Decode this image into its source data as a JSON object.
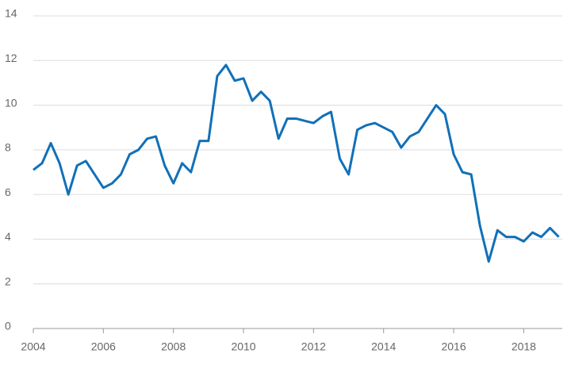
{
  "chart_data": {
    "type": "line",
    "x": [
      2004,
      2004.25,
      2004.5,
      2004.75,
      2005,
      2005.25,
      2005.5,
      2005.75,
      2006,
      2006.25,
      2006.5,
      2006.75,
      2007,
      2007.25,
      2007.5,
      2007.75,
      2008,
      2008.25,
      2008.5,
      2008.75,
      2009,
      2009.25,
      2009.5,
      2009.75,
      2010,
      2010.25,
      2010.5,
      2010.75,
      2011,
      2011.25,
      2011.5,
      2011.75,
      2012,
      2012.25,
      2012.5,
      2012.75,
      2013,
      2013.25,
      2013.5,
      2013.75,
      2014,
      2014.25,
      2014.5,
      2014.75,
      2015,
      2015.25,
      2015.5,
      2015.75,
      2016,
      2016.25,
      2016.5,
      2016.75,
      2017,
      2017.25,
      2017.5,
      2017.75,
      2018,
      2018.25,
      2018.5,
      2018.75,
      2019
    ],
    "series": [
      {
        "color": "#1170b8",
        "values": [
          7.1,
          7.4,
          8.3,
          7.4,
          6.0,
          7.3,
          7.5,
          6.9,
          6.3,
          6.5,
          6.9,
          7.8,
          8.0,
          8.5,
          8.6,
          7.3,
          6.5,
          7.4,
          7.0,
          8.4,
          8.4,
          11.3,
          11.8,
          11.1,
          11.2,
          10.2,
          10.6,
          10.2,
          8.5,
          9.4,
          9.4,
          9.3,
          9.2,
          9.5,
          9.7,
          7.6,
          6.9,
          8.9,
          9.1,
          9.2,
          9.0,
          8.8,
          8.1,
          8.6,
          8.8,
          9.4,
          10.0,
          9.6,
          7.8,
          7.0,
          6.9,
          4.6,
          3.0,
          4.4,
          4.1,
          4.1,
          3.9,
          4.3,
          4.1,
          4.5,
          4.1
        ]
      }
    ],
    "xlim": [
      2004,
      2019.1
    ],
    "xticks": [
      2004,
      2006,
      2008,
      2010,
      2012,
      2014,
      2016,
      2018
    ],
    "ylim": [
      0,
      14
    ],
    "yticks": [
      0,
      2,
      4,
      6,
      8,
      10,
      12,
      14
    ],
    "grid": true
  }
}
